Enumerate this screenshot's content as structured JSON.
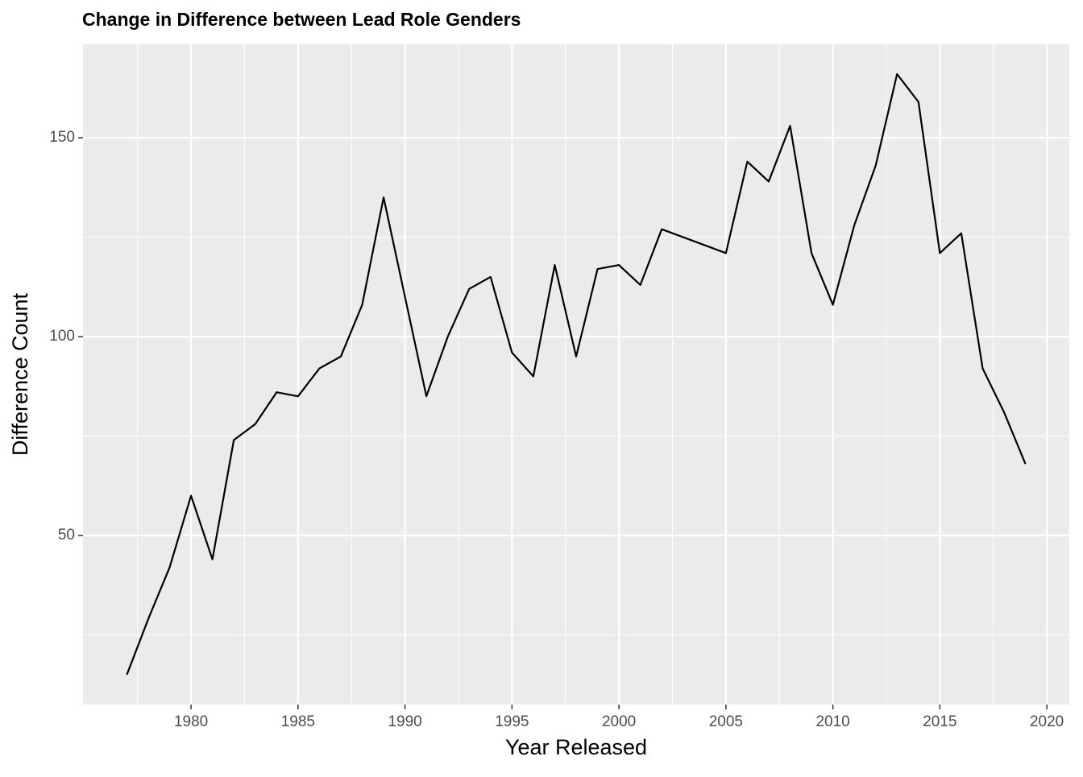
{
  "chart_data": {
    "type": "line",
    "title": "Change in Difference between Lead Role Genders",
    "x_label": "Year Released",
    "y_label": "Difference Count",
    "x": [
      1977,
      1978,
      1979,
      1980,
      1981,
      1982,
      1983,
      1984,
      1985,
      1986,
      1987,
      1988,
      1989,
      1990,
      1991,
      1992,
      1993,
      1994,
      1995,
      1996,
      1997,
      1998,
      1999,
      2000,
      2001,
      2002,
      2003,
      2004,
      2005,
      2006,
      2007,
      2008,
      2009,
      2010,
      2011,
      2012,
      2013,
      2014,
      2015,
      2016,
      2017,
      2018,
      2019
    ],
    "series": [
      {
        "color": "#000000",
        "values": [
          15,
          29,
          42,
          60,
          44,
          74,
          78,
          86,
          85,
          92,
          95,
          108,
          135,
          110,
          85,
          100,
          112,
          115,
          96,
          90,
          118,
          95,
          117,
          118,
          113,
          127,
          125,
          123,
          121,
          144,
          139,
          153,
          121,
          108,
          128,
          143,
          166,
          159,
          121,
          126,
          92,
          81,
          68
        ]
      }
    ],
    "xlim": [
      1974.95,
      2021.05
    ],
    "ylim": [
      7.5,
      173.5
    ],
    "xticks": [
      1980,
      1985,
      1990,
      1995,
      2000,
      2005,
      2010,
      2015,
      2020
    ],
    "yticks": [
      50,
      100,
      150
    ],
    "grid": true
  }
}
